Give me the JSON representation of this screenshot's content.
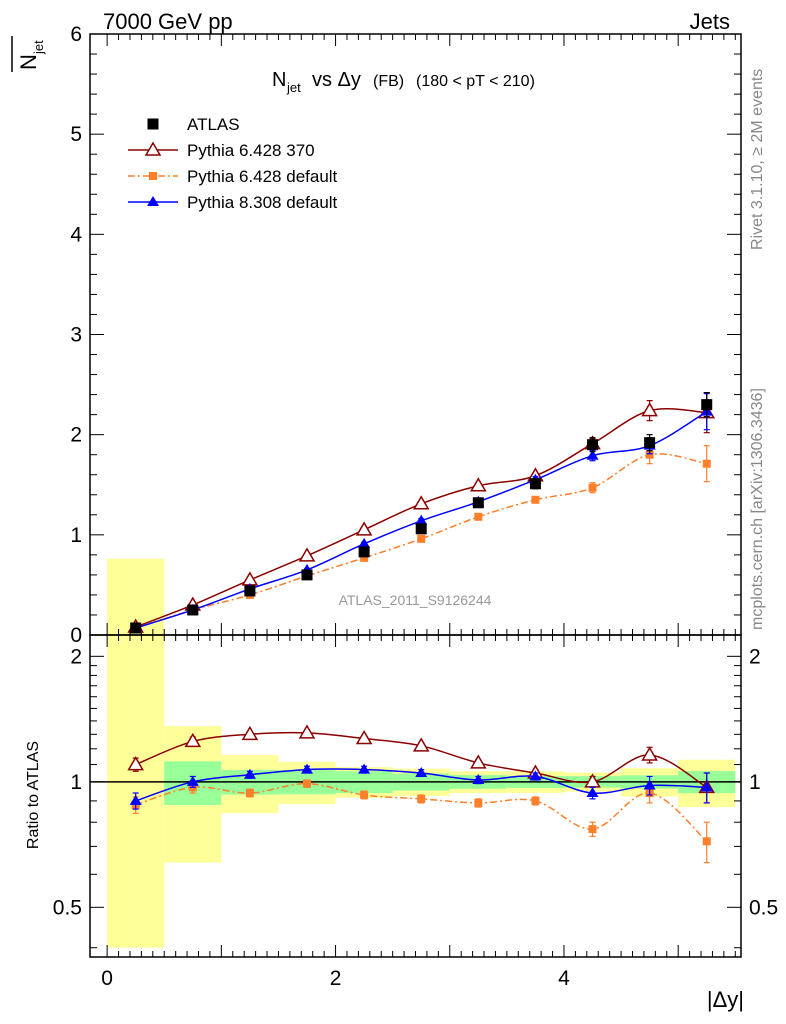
{
  "header": {
    "left": "7000 GeV pp",
    "right": "Jets"
  },
  "side_labels": {
    "rivet": "Rivet 3.1.10, ≥ 2M events",
    "mcplots": "mcplots.cern.ch [arXiv:1306.3436]"
  },
  "chart_data": {
    "type": "line",
    "title": "N_jet vs Δy (FB) (180 < pT < 210)",
    "watermark": "ATLAS_2011_S9126244",
    "xlabel": "|Δy|",
    "ylabel": "N_jet (mean)",
    "ratio_ylabel": "Ratio to ATLAS",
    "xlim": [
      -0.15,
      5.55
    ],
    "ylim": [
      0,
      6
    ],
    "ratio_ylim": [
      0.38,
      2.25
    ],
    "x_ticks": [
      0,
      2,
      4
    ],
    "y_ticks": [
      1,
      2,
      3,
      4,
      5,
      6
    ],
    "ratio_ticks": [
      0.5,
      1,
      2
    ],
    "legend_position": "top-left",
    "x": [
      0.25,
      0.75,
      1.25,
      1.75,
      2.25,
      2.75,
      3.25,
      3.75,
      4.25,
      4.75,
      5.25
    ],
    "bins": [
      [
        0,
        0.5
      ],
      [
        0.5,
        1
      ],
      [
        1,
        1.5
      ],
      [
        1.5,
        2
      ],
      [
        2,
        2.5
      ],
      [
        2.5,
        3
      ],
      [
        3,
        3.5
      ],
      [
        3.5,
        4
      ],
      [
        4,
        4.5
      ],
      [
        4.5,
        5
      ],
      [
        5,
        5.5
      ]
    ],
    "series": [
      {
        "name": "ATLAS",
        "color": "#000000",
        "marker": "square",
        "values": [
          0.07,
          0.25,
          0.44,
          0.6,
          0.83,
          1.06,
          1.32,
          1.51,
          1.9,
          1.92,
          2.3
        ],
        "errors": [
          0.01,
          0.01,
          0.02,
          0.02,
          0.03,
          0.03,
          0.04,
          0.05,
          0.07,
          0.08,
          0.12
        ],
        "band_inner": [
          0.08,
          0.03,
          0.03,
          0.04,
          0.05,
          0.05,
          0.05,
          0.05,
          0.06,
          0.07,
          0.14
        ],
        "band_outer": [
          0.17,
          0.09,
          0.07,
          0.07,
          0.07,
          0.08,
          0.08,
          0.09,
          0.1,
          0.15,
          0.3
        ]
      },
      {
        "name": "Pythia 6.428 370",
        "color": "#8b0000",
        "marker": "open-triangle",
        "line": "solid",
        "values": [
          0.08,
          0.3,
          0.55,
          0.79,
          1.05,
          1.31,
          1.49,
          1.59,
          1.91,
          2.24,
          2.22
        ],
        "errors": [
          0.004,
          0.006,
          0.008,
          0.01,
          0.015,
          0.02,
          0.025,
          0.03,
          0.05,
          0.1,
          0.2
        ],
        "ratio": [
          1.1,
          1.25,
          1.3,
          1.31,
          1.27,
          1.22,
          1.11,
          1.05,
          1.0,
          1.16,
          0.97
        ],
        "ratio_errors": [
          0.04,
          0.03,
          0.02,
          0.02,
          0.02,
          0.02,
          0.02,
          0.02,
          0.03,
          0.05,
          0.08
        ]
      },
      {
        "name": "Pythia 6.428 default",
        "color": "#ff7f2a",
        "marker": "filled-square-small",
        "line": "dashdot",
        "values": [
          0.07,
          0.25,
          0.4,
          0.59,
          0.77,
          0.96,
          1.18,
          1.35,
          1.47,
          1.8,
          1.71
        ],
        "errors": [
          0.004,
          0.006,
          0.008,
          0.01,
          0.015,
          0.02,
          0.025,
          0.03,
          0.05,
          0.09,
          0.18
        ],
        "ratio": [
          0.88,
          0.97,
          0.94,
          0.99,
          0.93,
          0.91,
          0.89,
          0.9,
          0.77,
          0.94,
          0.72
        ],
        "ratio_errors": [
          0.04,
          0.03,
          0.02,
          0.02,
          0.02,
          0.02,
          0.02,
          0.02,
          0.03,
          0.05,
          0.08
        ]
      },
      {
        "name": "Pythia 8.308 default",
        "color": "#0000ff",
        "marker": "filled-triangle",
        "line": "solid",
        "values": [
          0.07,
          0.25,
          0.46,
          0.65,
          0.91,
          1.14,
          1.33,
          1.55,
          1.79,
          1.89,
          2.23
        ],
        "errors": [
          0.004,
          0.006,
          0.008,
          0.01,
          0.015,
          0.02,
          0.025,
          0.03,
          0.05,
          0.08,
          0.18
        ],
        "ratio": [
          0.9,
          1.0,
          1.04,
          1.07,
          1.07,
          1.05,
          1.01,
          1.03,
          0.94,
          0.98,
          0.97
        ],
        "ratio_errors": [
          0.04,
          0.03,
          0.02,
          0.02,
          0.02,
          0.02,
          0.02,
          0.02,
          0.03,
          0.05,
          0.08
        ]
      }
    ]
  }
}
